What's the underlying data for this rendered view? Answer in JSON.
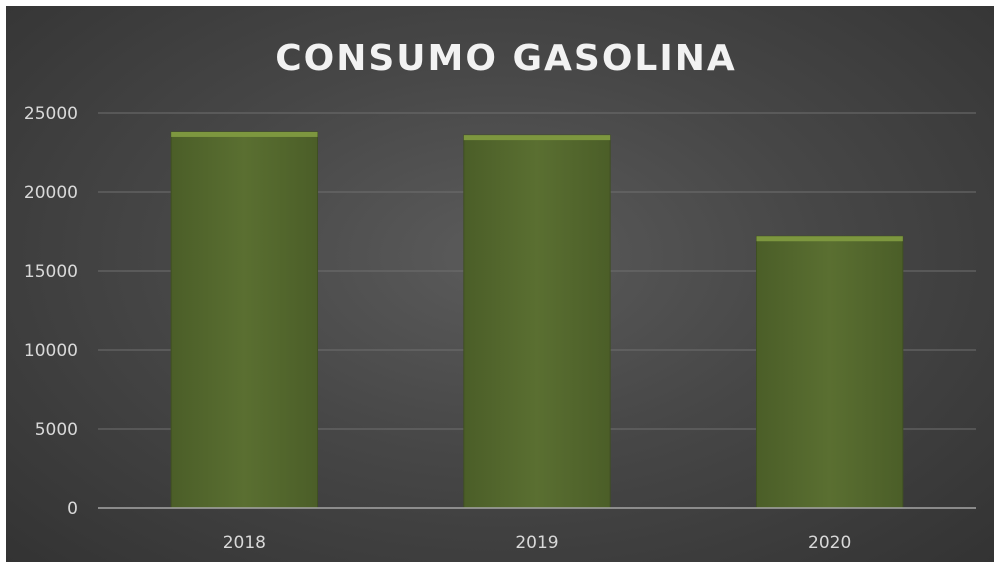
{
  "chart_data": {
    "type": "bar",
    "title": "CONSUMO GASOLINA",
    "categories": [
      "2018",
      "2019",
      "2020"
    ],
    "values": [
      23800,
      23600,
      17200
    ],
    "xlabel": "",
    "ylabel": "",
    "ylim": [
      0,
      25000
    ],
    "yticks": [
      "0",
      "5000",
      "10000",
      "15000",
      "20000",
      "25000"
    ],
    "grid": true,
    "legend": "none",
    "colors": {
      "bar": "#55692f",
      "bar_top": "#7d973f",
      "background": "#474747",
      "title": "#f2f2f2",
      "text": "#d9d9d9",
      "grid": "#6f6f6f"
    }
  }
}
